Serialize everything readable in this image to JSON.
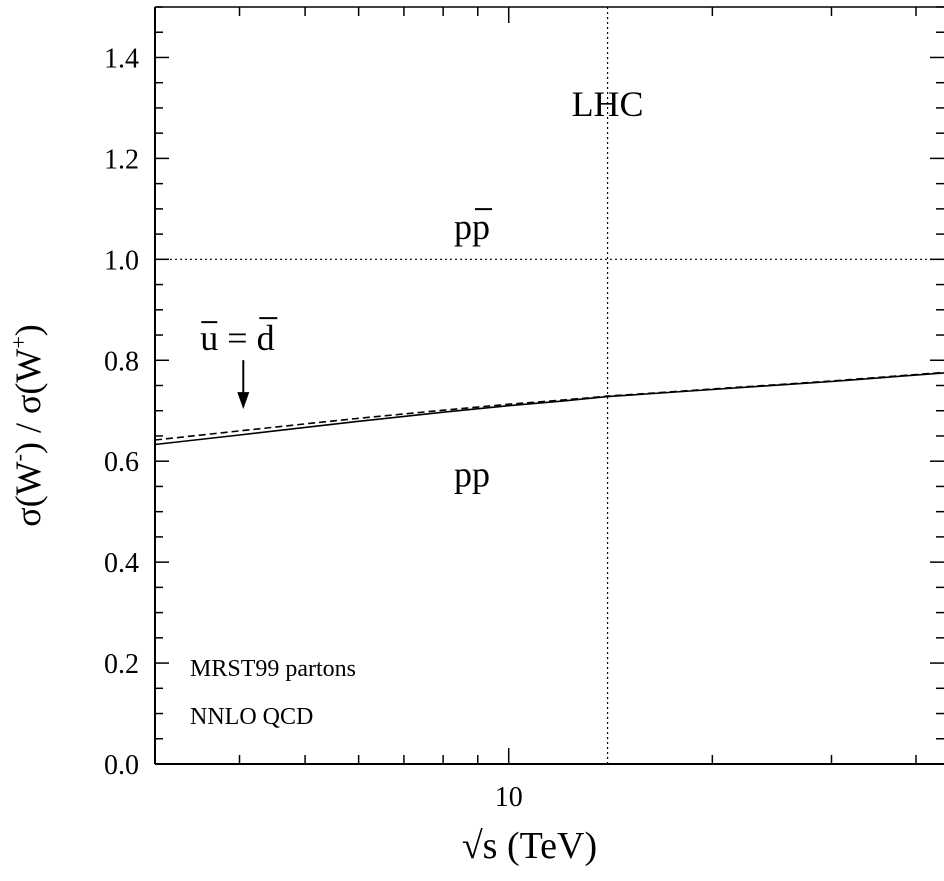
{
  "chart_data": {
    "type": "line",
    "xlabel": "√s   (TeV)",
    "ylabel_parts": {
      "base": "σ(W",
      "minus": "-",
      "mid": ") / σ(W",
      "plus": "+",
      "end": ")"
    },
    "x_scale": "log",
    "xlim": [
      3,
      44
    ],
    "ylim": [
      0.0,
      1.5
    ],
    "x_ticks": [
      10
    ],
    "x_tick_labels": [
      "10"
    ],
    "y_ticks": [
      0.0,
      0.2,
      0.4,
      0.6,
      0.8,
      1.0,
      1.2,
      1.4
    ],
    "y_tick_labels": [
      "0.0",
      "0.2",
      "0.4",
      "0.6",
      "0.8",
      "1.0",
      "1.2",
      "1.4"
    ],
    "grid": false,
    "series": [
      {
        "style": "solid",
        "x": [
          3,
          4,
          5,
          6,
          8,
          10,
          12,
          14,
          20,
          30,
          44
        ],
        "y": [
          0.633,
          0.652,
          0.667,
          0.679,
          0.697,
          0.71,
          0.719,
          0.728,
          0.742,
          0.758,
          0.775
        ]
      },
      {
        "style": "dashed",
        "x": [
          3,
          4,
          5,
          6,
          8,
          10,
          12,
          14,
          20,
          30,
          44
        ],
        "y": [
          0.642,
          0.66,
          0.674,
          0.685,
          0.701,
          0.713,
          0.721,
          0.729,
          0.743,
          0.759,
          0.776
        ]
      }
    ],
    "reference_lines": [
      {
        "orientation": "horizontal",
        "value": 1.0,
        "style": "dotted"
      },
      {
        "orientation": "vertical",
        "value": 14,
        "style": "dotted"
      }
    ],
    "annotations": {
      "lhc": {
        "text": "LHC",
        "x": 14,
        "y": 1.3
      },
      "ppbar": {
        "base": "p",
        "overlined": "p",
        "x": 8.3,
        "y": 1.04
      },
      "pp": {
        "text": "pp",
        "x": 8.3,
        "y": 0.55
      },
      "ubar_eq_dbar": {
        "u": "u",
        "eq": " = ",
        "d": "d",
        "x": 3.5,
        "y": 0.82
      },
      "info": [
        "MRST99 partons",
        "NNLO QCD"
      ]
    }
  }
}
